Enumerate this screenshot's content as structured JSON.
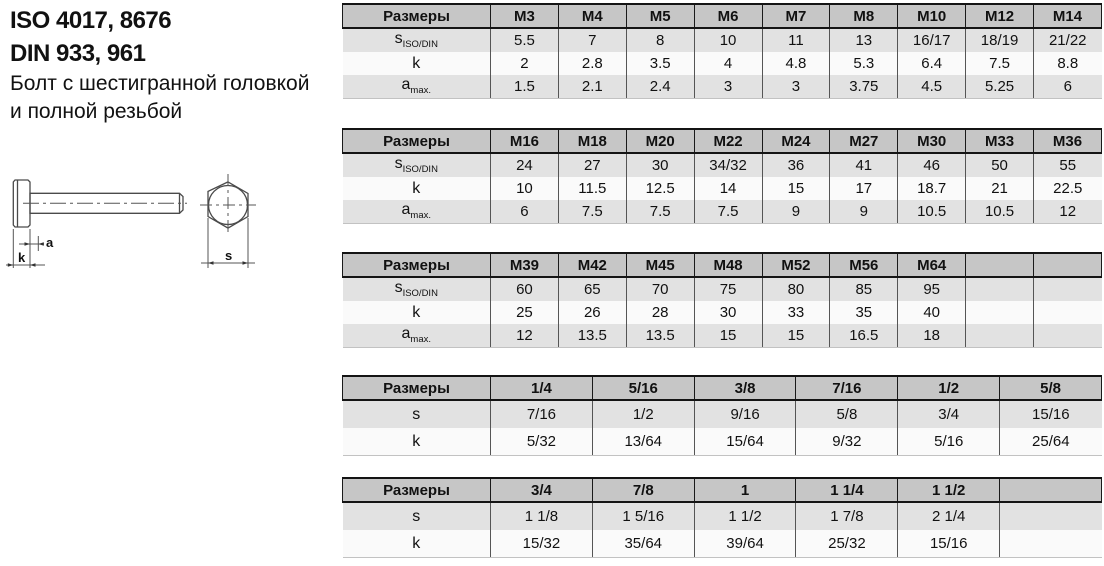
{
  "header": {
    "iso_line": "ISO 4017, 8676",
    "din_line": "DIN 933, 961",
    "subtitle_line1": "Болт с шестигранной головкой",
    "subtitle_line2": "и полной резьбой"
  },
  "drawing": {
    "labels": {
      "a": "a",
      "k": "k",
      "s": "s"
    }
  },
  "colors": {
    "header_bg": "#c6c6c6",
    "row_shade_bg": "#e2e2e2",
    "row_light_bg": "#fafafa",
    "border_dark": "#141414"
  },
  "tables": [
    {
      "size_label": "Размеры",
      "columns": [
        "M3",
        "M4",
        "M5",
        "M6",
        "M7",
        "M8",
        "M10",
        "M12",
        "M14"
      ],
      "rows": [
        {
          "base": "s",
          "sub": "ISO/DIN",
          "values": [
            "5.5",
            "7",
            "8",
            "10",
            "11",
            "13",
            "16/17",
            "18/19",
            "21/22"
          ]
        },
        {
          "base": "k",
          "sub": "",
          "values": [
            "2",
            "2.8",
            "3.5",
            "4",
            "4.8",
            "5.3",
            "6.4",
            "7.5",
            "8.8"
          ]
        },
        {
          "base": "a",
          "sub": "max.",
          "values": [
            "1.5",
            "2.1",
            "2.4",
            "3",
            "3",
            "3.75",
            "4.5",
            "5.25",
            "6"
          ]
        }
      ]
    },
    {
      "size_label": "Размеры",
      "columns": [
        "M16",
        "M18",
        "M20",
        "M22",
        "M24",
        "M27",
        "M30",
        "M33",
        "M36"
      ],
      "rows": [
        {
          "base": "s",
          "sub": "ISO/DIN",
          "values": [
            "24",
            "27",
            "30",
            "34/32",
            "36",
            "41",
            "46",
            "50",
            "55"
          ]
        },
        {
          "base": "k",
          "sub": "",
          "values": [
            "10",
            "11.5",
            "12.5",
            "14",
            "15",
            "17",
            "18.7",
            "21",
            "22.5"
          ]
        },
        {
          "base": "a",
          "sub": "max.",
          "values": [
            "6",
            "7.5",
            "7.5",
            "7.5",
            "9",
            "9",
            "10.5",
            "10.5",
            "12"
          ]
        }
      ]
    },
    {
      "size_label": "Размеры",
      "columns": [
        "M39",
        "M42",
        "M45",
        "M48",
        "M52",
        "M56",
        "M64",
        "",
        ""
      ],
      "rows": [
        {
          "base": "s",
          "sub": "ISO/DIN",
          "values": [
            "60",
            "65",
            "70",
            "75",
            "80",
            "85",
            "95",
            "",
            ""
          ]
        },
        {
          "base": "k",
          "sub": "",
          "values": [
            "25",
            "26",
            "28",
            "30",
            "33",
            "35",
            "40",
            "",
            ""
          ]
        },
        {
          "base": "a",
          "sub": "max.",
          "values": [
            "12",
            "13.5",
            "13.5",
            "15",
            "15",
            "16.5",
            "18",
            "",
            ""
          ]
        }
      ]
    },
    {
      "size_label": "Размеры",
      "columns": [
        "1/4",
        "5/16",
        "3/8",
        "7/16",
        "1/2",
        "5/8"
      ],
      "rows": [
        {
          "base": "s",
          "sub": "",
          "values": [
            "7/16",
            "1/2",
            "9/16",
            "5/8",
            "3/4",
            "15/16"
          ]
        },
        {
          "base": "k",
          "sub": "",
          "values": [
            "5/32",
            "13/64",
            "15/64",
            "9/32",
            "5/16",
            "25/64"
          ]
        }
      ]
    },
    {
      "size_label": "Размеры",
      "columns": [
        "3/4",
        "7/8",
        "1",
        "1 1/4",
        "1 1/2",
        ""
      ],
      "rows": [
        {
          "base": "s",
          "sub": "",
          "values": [
            "1 1/8",
            "1 5/16",
            "1 1/2",
            "1 7/8",
            "2 1/4",
            ""
          ]
        },
        {
          "base": "k",
          "sub": "",
          "values": [
            "15/32",
            "35/64",
            "39/64",
            "25/32",
            "15/16",
            ""
          ]
        }
      ]
    }
  ]
}
